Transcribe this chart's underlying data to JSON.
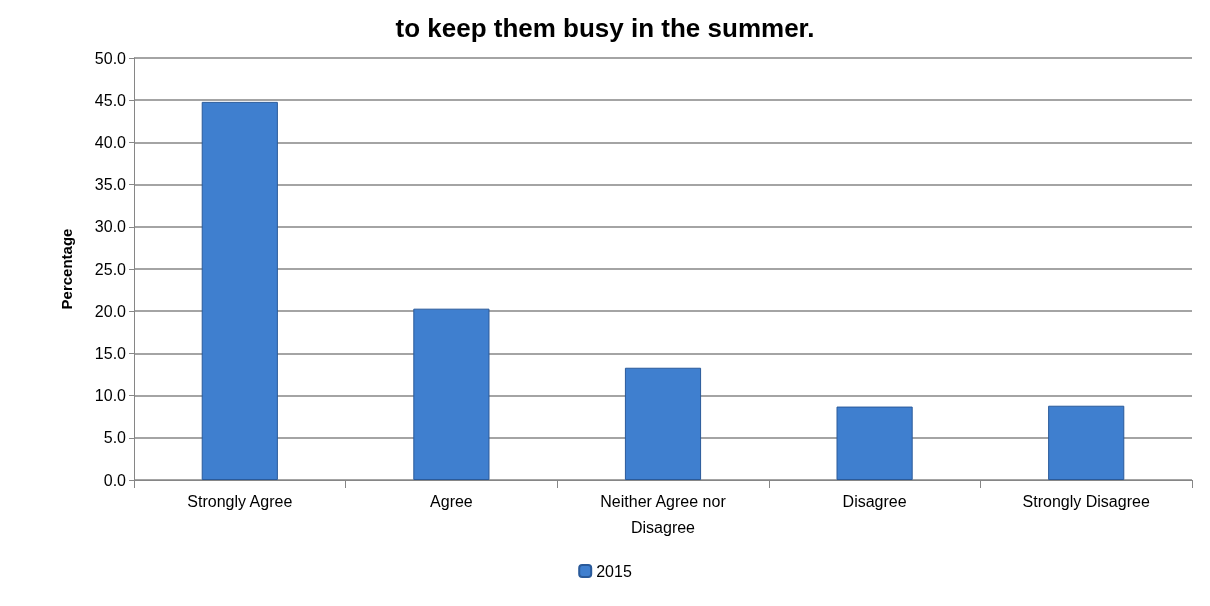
{
  "chart_data": {
    "type": "bar",
    "title": "to keep them busy in the summer.",
    "ylabel": "Percentage",
    "categories": [
      "Strongly Agree",
      "Agree",
      "Neither Agree nor Disagree",
      "Disagree",
      "Strongly Disagree"
    ],
    "series": [
      {
        "name": "2015",
        "color": "#3f7fcf",
        "values": [
          44.8,
          20.3,
          13.3,
          8.7,
          8.8
        ]
      }
    ],
    "ylim": [
      0,
      50
    ],
    "yticks": [
      {
        "value": 0,
        "label": "0.0"
      },
      {
        "value": 5,
        "label": "5.0"
      },
      {
        "value": 10,
        "label": "10.0"
      },
      {
        "value": 15,
        "label": "15.0"
      },
      {
        "value": 20,
        "label": "20.0"
      },
      {
        "value": 25,
        "label": "25.0"
      },
      {
        "value": 30,
        "label": "30.0"
      },
      {
        "value": 35,
        "label": "35.0"
      },
      {
        "value": 40,
        "label": "40.0"
      },
      {
        "value": 45,
        "label": "45.0"
      },
      {
        "value": 50,
        "label": "50.0"
      }
    ],
    "grid": "y",
    "legend": "bottom"
  }
}
